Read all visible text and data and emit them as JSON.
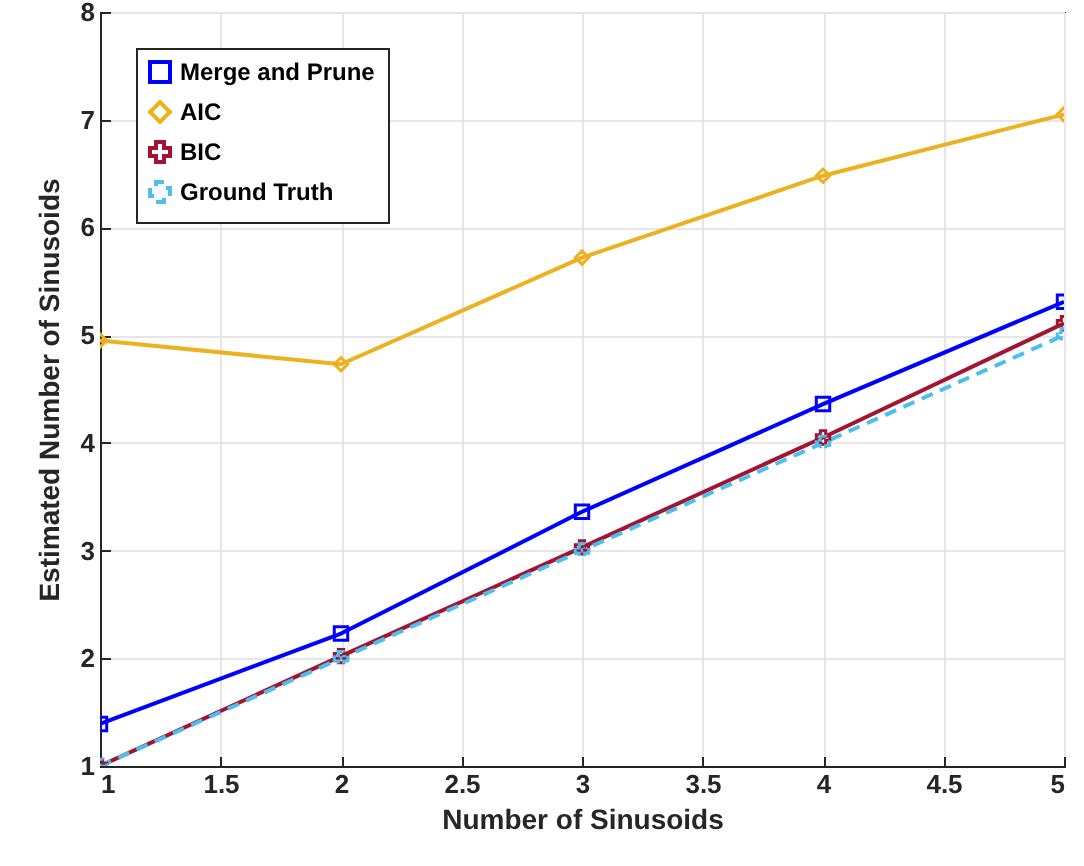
{
  "chart_data": {
    "type": "line",
    "xlabel": "Number of Sinusoids",
    "ylabel": "Estimated Number of Sinusoids",
    "x": [
      1,
      2,
      3,
      4,
      5
    ],
    "series": [
      {
        "name": "Merge and Prune",
        "color": "#0000ff",
        "marker": "square",
        "line_style": "solid",
        "values": [
          1.39,
          2.23,
          3.36,
          4.36,
          5.31
        ]
      },
      {
        "name": "AIC",
        "color": "#edb120",
        "marker": "diamond",
        "line_style": "solid",
        "values": [
          4.95,
          4.73,
          5.72,
          6.48,
          7.05
        ]
      },
      {
        "name": "BIC",
        "color": "#a2142f",
        "marker": "cross",
        "line_style": "solid",
        "values": [
          1.0,
          2.02,
          3.03,
          4.05,
          5.11
        ]
      },
      {
        "name": "Ground Truth",
        "color": "#4dbeee",
        "marker": "cross",
        "line_style": "dashed",
        "values": [
          1,
          2,
          3,
          4,
          5
        ]
      }
    ],
    "xlim": [
      1,
      5
    ],
    "xticks": [
      1,
      1.5,
      2,
      2.5,
      3,
      3.5,
      4,
      4.5,
      5
    ],
    "ylim": [
      1,
      8
    ],
    "yticks": [
      1,
      2,
      3,
      4,
      5,
      6,
      7,
      8
    ],
    "grid": true,
    "legend": "top left"
  }
}
